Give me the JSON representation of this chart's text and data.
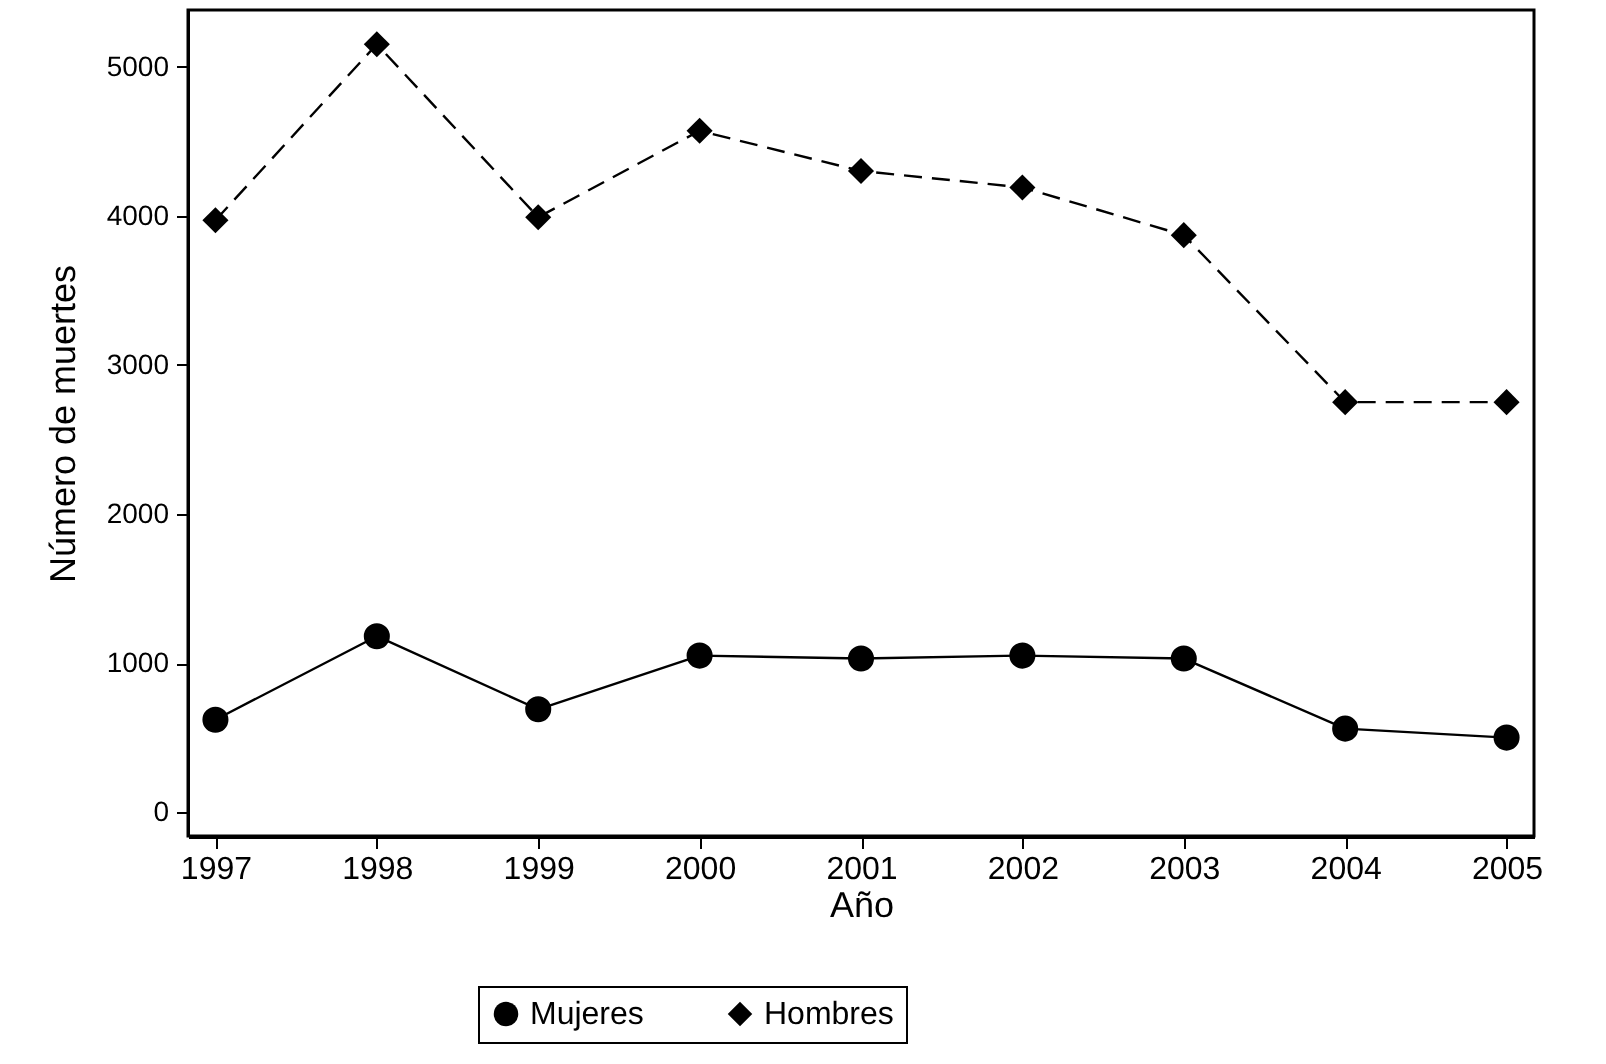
{
  "chart_data": {
    "type": "line",
    "xlabel": "Año",
    "ylabel": "Número de muertes",
    "x": [
      1997,
      1998,
      1999,
      2000,
      2001,
      2002,
      2003,
      2004,
      2005
    ],
    "xlim": [
      1996.83,
      2005.17
    ],
    "xticks": [
      1997,
      1998,
      1999,
      2000,
      2001,
      2002,
      2003,
      2004,
      2005
    ],
    "ylim": [
      -160,
      5380
    ],
    "yticks": [
      0,
      1000,
      2000,
      3000,
      4000,
      5000
    ],
    "series": [
      {
        "name": "Mujeres",
        "color": "#000000",
        "marker": "circle",
        "line_style": "solid",
        "values": [
          620,
          1180,
          690,
          1050,
          1030,
          1050,
          1030,
          560,
          500
        ]
      },
      {
        "name": "Hombres",
        "color": "#000000",
        "marker": "diamond",
        "line_style": "dashed",
        "values": [
          3970,
          5150,
          3990,
          4570,
          4300,
          4190,
          3870,
          2750,
          2750
        ]
      }
    ],
    "grid": false,
    "legend": "bottom"
  }
}
